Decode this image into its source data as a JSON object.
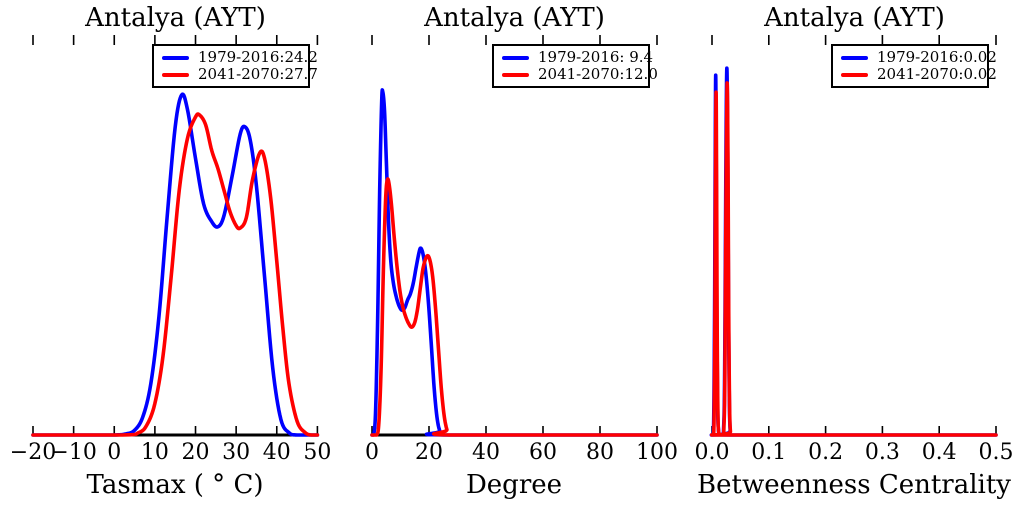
{
  "figure": {
    "background": "#ffffff",
    "axis_color": "#000000",
    "text_color": "#000000"
  },
  "chart_data": [
    {
      "type": "line",
      "kind": "kde-density",
      "title": "Antalya (AYT)",
      "xlabel": "Tasmax ( ° C)",
      "ylabel": "",
      "grid": false,
      "xlim": [
        -20,
        50
      ],
      "ylim": [
        0,
        1
      ],
      "xticks": {
        "values": [
          -20,
          -10,
          0,
          10,
          20,
          30,
          40,
          50
        ],
        "labels": [
          "−20",
          "−10",
          "0",
          "10",
          "20",
          "30",
          "40",
          "50"
        ]
      },
      "legend": {
        "position": "upper right",
        "entries": [
          {
            "label": "1979-2016:24.2",
            "color": "#0000ff"
          },
          {
            "label": "2041-2070:27.7",
            "color": "#ff0000"
          }
        ]
      },
      "series": [
        {
          "name": "1979-2016",
          "color": "#0000ff",
          "points": [
            [
              -20,
              0
            ],
            [
              -5,
              0
            ],
            [
              0,
              0
            ],
            [
              3,
              0.003
            ],
            [
              5,
              0.012
            ],
            [
              7,
              0.045
            ],
            [
              9,
              0.13
            ],
            [
              11,
              0.3
            ],
            [
              13,
              0.55
            ],
            [
              15,
              0.78
            ],
            [
              16.6,
              0.861
            ],
            [
              18,
              0.825
            ],
            [
              20,
              0.7
            ],
            [
              22,
              0.585
            ],
            [
              24,
              0.54
            ],
            [
              25.5,
              0.527
            ],
            [
              27,
              0.555
            ],
            [
              29,
              0.655
            ],
            [
              31,
              0.762
            ],
            [
              32.2,
              0.78
            ],
            [
              33.5,
              0.745
            ],
            [
              35,
              0.63
            ],
            [
              37,
              0.4
            ],
            [
              39,
              0.17
            ],
            [
              41,
              0.04
            ],
            [
              43,
              0.006
            ],
            [
              45,
              0
            ],
            [
              50,
              0
            ]
          ]
        },
        {
          "name": "2041-2070",
          "color": "#ff0000",
          "points": [
            [
              -20,
              0
            ],
            [
              2,
              0
            ],
            [
              6,
              0.006
            ],
            [
              8,
              0.025
            ],
            [
              10,
              0.08
            ],
            [
              12,
              0.2
            ],
            [
              14,
              0.4
            ],
            [
              16,
              0.62
            ],
            [
              18,
              0.75
            ],
            [
              20,
              0.805
            ],
            [
              21,
              0.81
            ],
            [
              22.5,
              0.785
            ],
            [
              24,
              0.72
            ],
            [
              25.5,
              0.675
            ],
            [
              27,
              0.62
            ],
            [
              28.5,
              0.565
            ],
            [
              30,
              0.53
            ],
            [
              31,
              0.524
            ],
            [
              32.5,
              0.55
            ],
            [
              34,
              0.645
            ],
            [
              35.8,
              0.714
            ],
            [
              37,
              0.7
            ],
            [
              38.5,
              0.6
            ],
            [
              40,
              0.44
            ],
            [
              41.5,
              0.27
            ],
            [
              43,
              0.13
            ],
            [
              45,
              0.035
            ],
            [
              47,
              0.006
            ],
            [
              48.5,
              0
            ],
            [
              50,
              0
            ]
          ]
        }
      ]
    },
    {
      "type": "line",
      "kind": "kde-density",
      "title": "Antalya (AYT)",
      "xlabel": "Degree",
      "ylabel": "",
      "grid": false,
      "xlim": [
        0,
        100
      ],
      "ylim": [
        0,
        1
      ],
      "xticks": {
        "values": [
          0,
          20,
          40,
          60,
          80,
          100
        ],
        "labels": [
          "0",
          "20",
          "40",
          "60",
          "80",
          "100"
        ]
      },
      "legend": {
        "position": "upper right",
        "entries": [
          {
            "label": "1979-2016: 9.4",
            "color": "#0000ff"
          },
          {
            "label": "2041-2070:12.0",
            "color": "#ff0000"
          }
        ]
      },
      "series": [
        {
          "name": "1979-2016",
          "color": "#0000ff",
          "points": [
            [
              0,
              0
            ],
            [
              0.7,
              0.005
            ],
            [
              1.3,
              0.07
            ],
            [
              2,
              0.3
            ],
            [
              2.7,
              0.62
            ],
            [
              3.4,
              0.845
            ],
            [
              3.8,
              0.868
            ],
            [
              4.4,
              0.82
            ],
            [
              5,
              0.7
            ],
            [
              5.8,
              0.54
            ],
            [
              6.6,
              0.44
            ],
            [
              7.5,
              0.385
            ],
            [
              8.5,
              0.35
            ],
            [
              9.5,
              0.327
            ],
            [
              10.5,
              0.316
            ],
            [
              11.5,
              0.322
            ],
            [
              12.5,
              0.342
            ],
            [
              13.5,
              0.358
            ],
            [
              14.5,
              0.385
            ],
            [
              15.5,
              0.425
            ],
            [
              16.5,
              0.462
            ],
            [
              17.1,
              0.473
            ],
            [
              17.9,
              0.458
            ],
            [
              18.8,
              0.415
            ],
            [
              19.8,
              0.335
            ],
            [
              20.8,
              0.23
            ],
            [
              21.8,
              0.12
            ],
            [
              22.8,
              0.045
            ],
            [
              23.8,
              0.01
            ],
            [
              25,
              0
            ],
            [
              100,
              0
            ]
          ]
        },
        {
          "name": "2041-2070",
          "color": "#ff0000",
          "points": [
            [
              0,
              0
            ],
            [
              1.6,
              0
            ],
            [
              2.4,
              0.03
            ],
            [
              3.2,
              0.17
            ],
            [
              4,
              0.42
            ],
            [
              4.8,
              0.6
            ],
            [
              5.4,
              0.646
            ],
            [
              6,
              0.635
            ],
            [
              6.8,
              0.585
            ],
            [
              7.8,
              0.5
            ],
            [
              8.8,
              0.425
            ],
            [
              9.8,
              0.365
            ],
            [
              10.8,
              0.325
            ],
            [
              11.8,
              0.3
            ],
            [
              12.8,
              0.283
            ],
            [
              13.9,
              0.273
            ],
            [
              15,
              0.285
            ],
            [
              16,
              0.32
            ],
            [
              17,
              0.375
            ],
            [
              18,
              0.425
            ],
            [
              19.3,
              0.453
            ],
            [
              20.3,
              0.443
            ],
            [
              21.3,
              0.4
            ],
            [
              22.3,
              0.32
            ],
            [
              23.3,
              0.22
            ],
            [
              24.3,
              0.12
            ],
            [
              25.3,
              0.05
            ],
            [
              26.3,
              0.013
            ],
            [
              27.3,
              0
            ],
            [
              100,
              0
            ]
          ]
        }
      ]
    },
    {
      "type": "line",
      "kind": "kde-density",
      "title": "Antalya (AYT)",
      "xlabel": "Betweenness Centrality",
      "ylabel": "",
      "grid": false,
      "xlim": [
        0,
        0.5
      ],
      "ylim": [
        0,
        1
      ],
      "xticks": {
        "values": [
          0,
          0.1,
          0.2,
          0.3,
          0.4,
          0.5
        ],
        "labels": [
          "0.0",
          "0.1",
          "0.2",
          "0.3",
          "0.4",
          "0.5"
        ]
      },
      "legend": {
        "position": "upper right",
        "entries": [
          {
            "label": "1979-2016:0.02",
            "color": "#0000ff"
          },
          {
            "label": "2041-2070:0.02",
            "color": "#ff0000"
          }
        ]
      },
      "series": [
        {
          "name": "1979-2016",
          "color": "#0000ff",
          "points": [
            [
              0,
              0
            ],
            [
              0.0015,
              0
            ],
            [
              0.003,
              0.04
            ],
            [
              0.0045,
              0.3
            ],
            [
              0.0055,
              0.65
            ],
            [
              0.0065,
              0.911
            ],
            [
              0.0075,
              0.68
            ],
            [
              0.0085,
              0.32
            ],
            [
              0.01,
              0.07
            ],
            [
              0.0115,
              0.01
            ],
            [
              0.013,
              0
            ],
            [
              0.019,
              0
            ],
            [
              0.0205,
              0.02
            ],
            [
              0.022,
              0.12
            ],
            [
              0.0235,
              0.45
            ],
            [
              0.025,
              0.8
            ],
            [
              0.0263,
              0.927
            ],
            [
              0.0277,
              0.72
            ],
            [
              0.029,
              0.35
            ],
            [
              0.0305,
              0.09
            ],
            [
              0.032,
              0.01
            ],
            [
              0.0335,
              0
            ],
            [
              0.5,
              0
            ]
          ]
        },
        {
          "name": "2041-2070",
          "color": "#ff0000",
          "points": [
            [
              0,
              0
            ],
            [
              0.002,
              0
            ],
            [
              0.0035,
              0.03
            ],
            [
              0.005,
              0.25
            ],
            [
              0.006,
              0.6
            ],
            [
              0.0072,
              0.868
            ],
            [
              0.0082,
              0.6
            ],
            [
              0.0092,
              0.25
            ],
            [
              0.0105,
              0.05
            ],
            [
              0.012,
              0.005
            ],
            [
              0.0135,
              0
            ],
            [
              0.0195,
              0
            ],
            [
              0.021,
              0.02
            ],
            [
              0.0225,
              0.12
            ],
            [
              0.024,
              0.45
            ],
            [
              0.0255,
              0.75
            ],
            [
              0.0268,
              0.891
            ],
            [
              0.0282,
              0.68
            ],
            [
              0.0295,
              0.3
            ],
            [
              0.031,
              0.07
            ],
            [
              0.0325,
              0.008
            ],
            [
              0.034,
              0
            ],
            [
              0.5,
              0
            ]
          ]
        }
      ]
    }
  ]
}
